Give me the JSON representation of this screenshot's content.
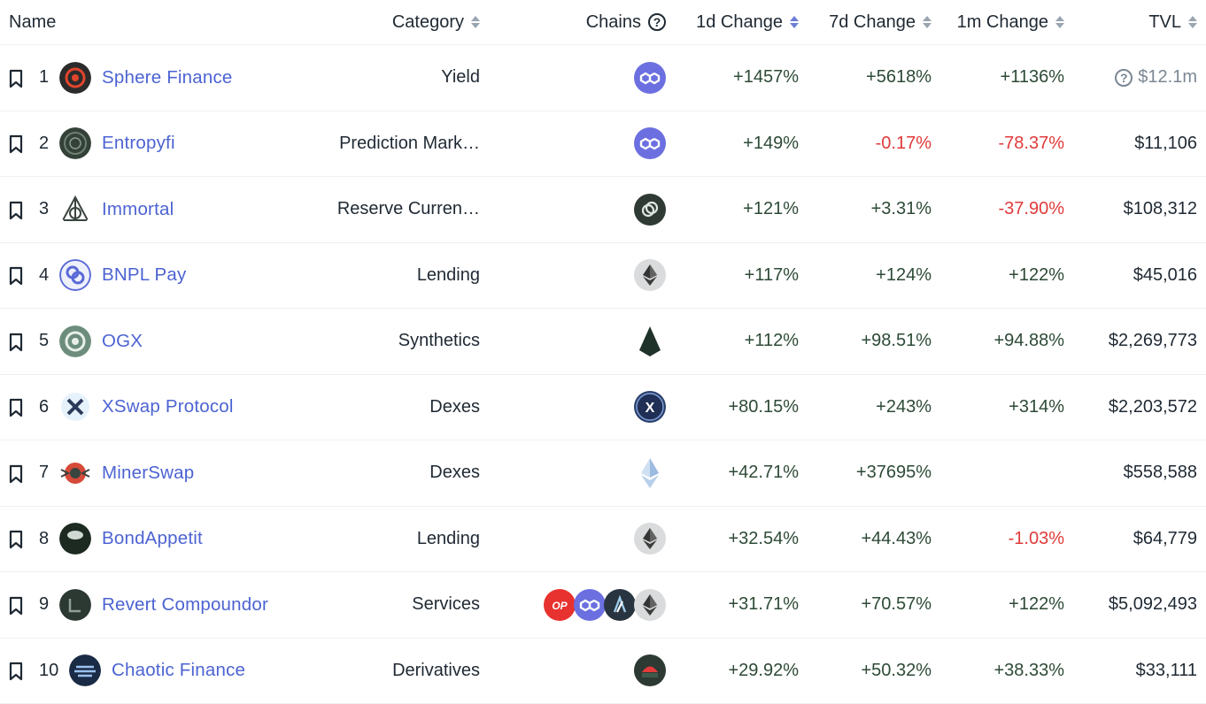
{
  "columns": {
    "name": "Name",
    "category": "Category",
    "chains": "Chains",
    "change_1d": "1d Change",
    "change_7d": "7d Change",
    "change_1m": "1m Change",
    "tvl": "TVL"
  },
  "colors": {
    "name_link": "#4c63d2",
    "positive": "#2d4a36",
    "negative": "#e03a3a"
  },
  "rows": [
    {
      "rank": "1",
      "name": "Sphere Finance",
      "category": "Yield",
      "chains": [
        "polygon"
      ],
      "d1": "+1457%",
      "d7": "+5618%",
      "m1": "+1136%",
      "tvl": "$12.1m",
      "tvl_flag": "question-icon"
    },
    {
      "rank": "2",
      "name": "Entropyfi",
      "category": "Prediction Mark…",
      "chains": [
        "polygon"
      ],
      "d1": "+149%",
      "d7": "-0.17%",
      "m1": "-78.37%",
      "tvl": "$11,106"
    },
    {
      "rank": "3",
      "name": "Immortal",
      "category": "Reserve Curren…",
      "chains": [
        "celo"
      ],
      "d1": "+121%",
      "d7": "+3.31%",
      "m1": "-37.90%",
      "tvl": "$108,312"
    },
    {
      "rank": "4",
      "name": "BNPL Pay",
      "category": "Lending",
      "chains": [
        "ethereum"
      ],
      "d1": "+117%",
      "d7": "+124%",
      "m1": "+122%",
      "tvl": "$45,016"
    },
    {
      "rank": "5",
      "name": "OGX",
      "category": "Synthetics",
      "chains": [
        "evmos"
      ],
      "d1": "+112%",
      "d7": "+98.51%",
      "m1": "+94.88%",
      "tvl": "$2,269,773"
    },
    {
      "rank": "6",
      "name": "XSwap Protocol",
      "category": "Dexes",
      "chains": [
        "xdc"
      ],
      "d1": "+80.15%",
      "d7": "+243%",
      "m1": "+314%",
      "tvl": "$2,203,572"
    },
    {
      "rank": "7",
      "name": "MinerSwap",
      "category": "Dexes",
      "chains": [
        "ethpow"
      ],
      "d1": "+42.71%",
      "d7": "+37695%",
      "m1": "",
      "tvl": "$558,588"
    },
    {
      "rank": "8",
      "name": "BondAppetit",
      "category": "Lending",
      "chains": [
        "ethereum"
      ],
      "d1": "+32.54%",
      "d7": "+44.43%",
      "m1": "-1.03%",
      "tvl": "$64,779"
    },
    {
      "rank": "9",
      "name": "Revert Compoundor",
      "category": "Services",
      "chains": [
        "optimism",
        "polygon",
        "arbitrum",
        "ethereum"
      ],
      "d1": "+31.71%",
      "d7": "+70.57%",
      "m1": "+122%",
      "tvl": "$5,092,493"
    },
    {
      "rank": "10",
      "name": "Chaotic Finance",
      "category": "Derivatives",
      "chains": [
        "kava"
      ],
      "d1": "+29.92%",
      "d7": "+50.32%",
      "m1": "+38.33%",
      "tvl": "$33,111"
    }
  ]
}
